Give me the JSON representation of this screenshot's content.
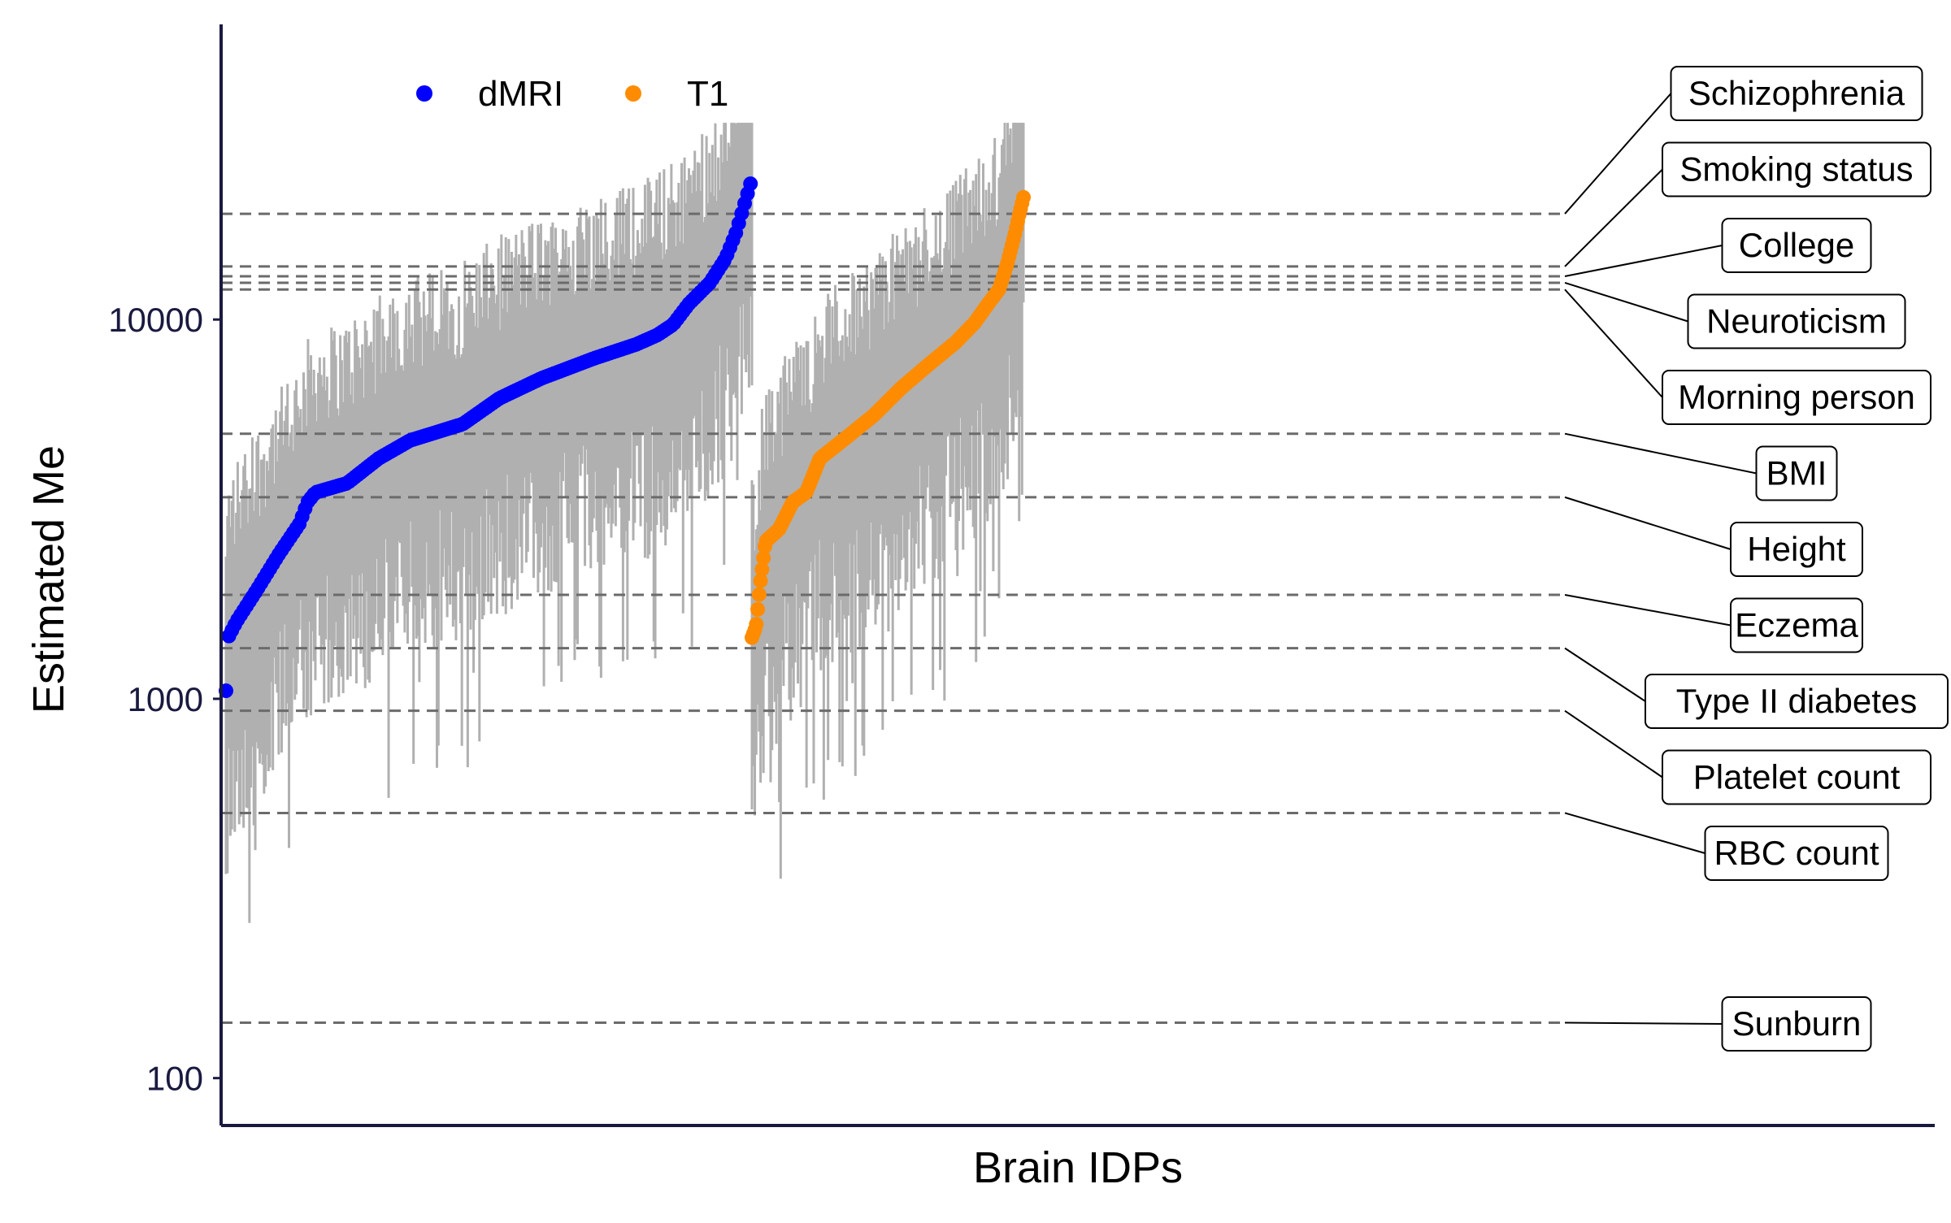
{
  "chart_data": {
    "type": "scatter",
    "title": "",
    "xlabel": "Brain IDPs",
    "ylabel": "Estimated Me",
    "y_scale": "log10",
    "ylim": [
      75,
      60000
    ],
    "y_ticks": [
      {
        "value": 100,
        "label": "100"
      },
      {
        "value": 1000,
        "label": "1000"
      },
      {
        "value": 10000,
        "label": "10000"
      }
    ],
    "grid": false,
    "legend": {
      "position": "top-left",
      "entries": [
        {
          "name": "dMRI",
          "color": "#0000ff"
        },
        {
          "name": "T1",
          "color": "#ff8c00"
        }
      ]
    },
    "errorbar_color": "#b0b0b0",
    "series": [
      {
        "name": "dMRI",
        "color": "#0000ff",
        "count": 360,
        "quantiles": [
          [
            0,
            1050
          ],
          [
            0.004,
            1450
          ],
          [
            0.02,
            1600
          ],
          [
            0.06,
            1950
          ],
          [
            0.1,
            2400
          ],
          [
            0.14,
            2900
          ],
          [
            0.155,
            3300
          ],
          [
            0.17,
            3500
          ],
          [
            0.23,
            3700
          ],
          [
            0.29,
            4300
          ],
          [
            0.35,
            4800
          ],
          [
            0.45,
            5300
          ],
          [
            0.52,
            6200
          ],
          [
            0.6,
            7000
          ],
          [
            0.7,
            7900
          ],
          [
            0.78,
            8600
          ],
          [
            0.82,
            9100
          ],
          [
            0.85,
            9700
          ],
          [
            0.88,
            11000
          ],
          [
            0.92,
            12500
          ],
          [
            0.95,
            14500
          ],
          [
            0.97,
            17000
          ],
          [
            0.985,
            20000
          ],
          [
            1,
            23500
          ]
        ]
      },
      {
        "name": "T1",
        "color": "#ff8c00",
        "count": 190,
        "quantiles": [
          [
            0,
            1450
          ],
          [
            0.015,
            1550
          ],
          [
            0.03,
            2000
          ],
          [
            0.05,
            2600
          ],
          [
            0.1,
            2800
          ],
          [
            0.15,
            3300
          ],
          [
            0.2,
            3500
          ],
          [
            0.25,
            4300
          ],
          [
            0.35,
            4900
          ],
          [
            0.45,
            5600
          ],
          [
            0.55,
            6600
          ],
          [
            0.65,
            7600
          ],
          [
            0.75,
            8700
          ],
          [
            0.82,
            9800
          ],
          [
            0.87,
            11000
          ],
          [
            0.91,
            12000
          ],
          [
            0.94,
            14000
          ],
          [
            0.97,
            17000
          ],
          [
            0.985,
            19000
          ],
          [
            1,
            21000
          ]
        ]
      }
    ],
    "reference_lines": [
      {
        "label": "Schizophrenia",
        "value": 19000
      },
      {
        "label": "Smoking status",
        "value": 13800
      },
      {
        "label": "College",
        "value": 13000
      },
      {
        "label": "Neuroticism",
        "value": 12500
      },
      {
        "label": "Morning person",
        "value": 12000
      },
      {
        "label": "BMI",
        "value": 5000
      },
      {
        "label": "Height",
        "value": 3400
      },
      {
        "label": "Eczema",
        "value": 1880
      },
      {
        "label": "Type II diabetes",
        "value": 1360
      },
      {
        "label": "Platelet count",
        "value": 930
      },
      {
        "label": "RBC count",
        "value": 500
      },
      {
        "label": "Sunburn",
        "value": 140
      }
    ]
  }
}
